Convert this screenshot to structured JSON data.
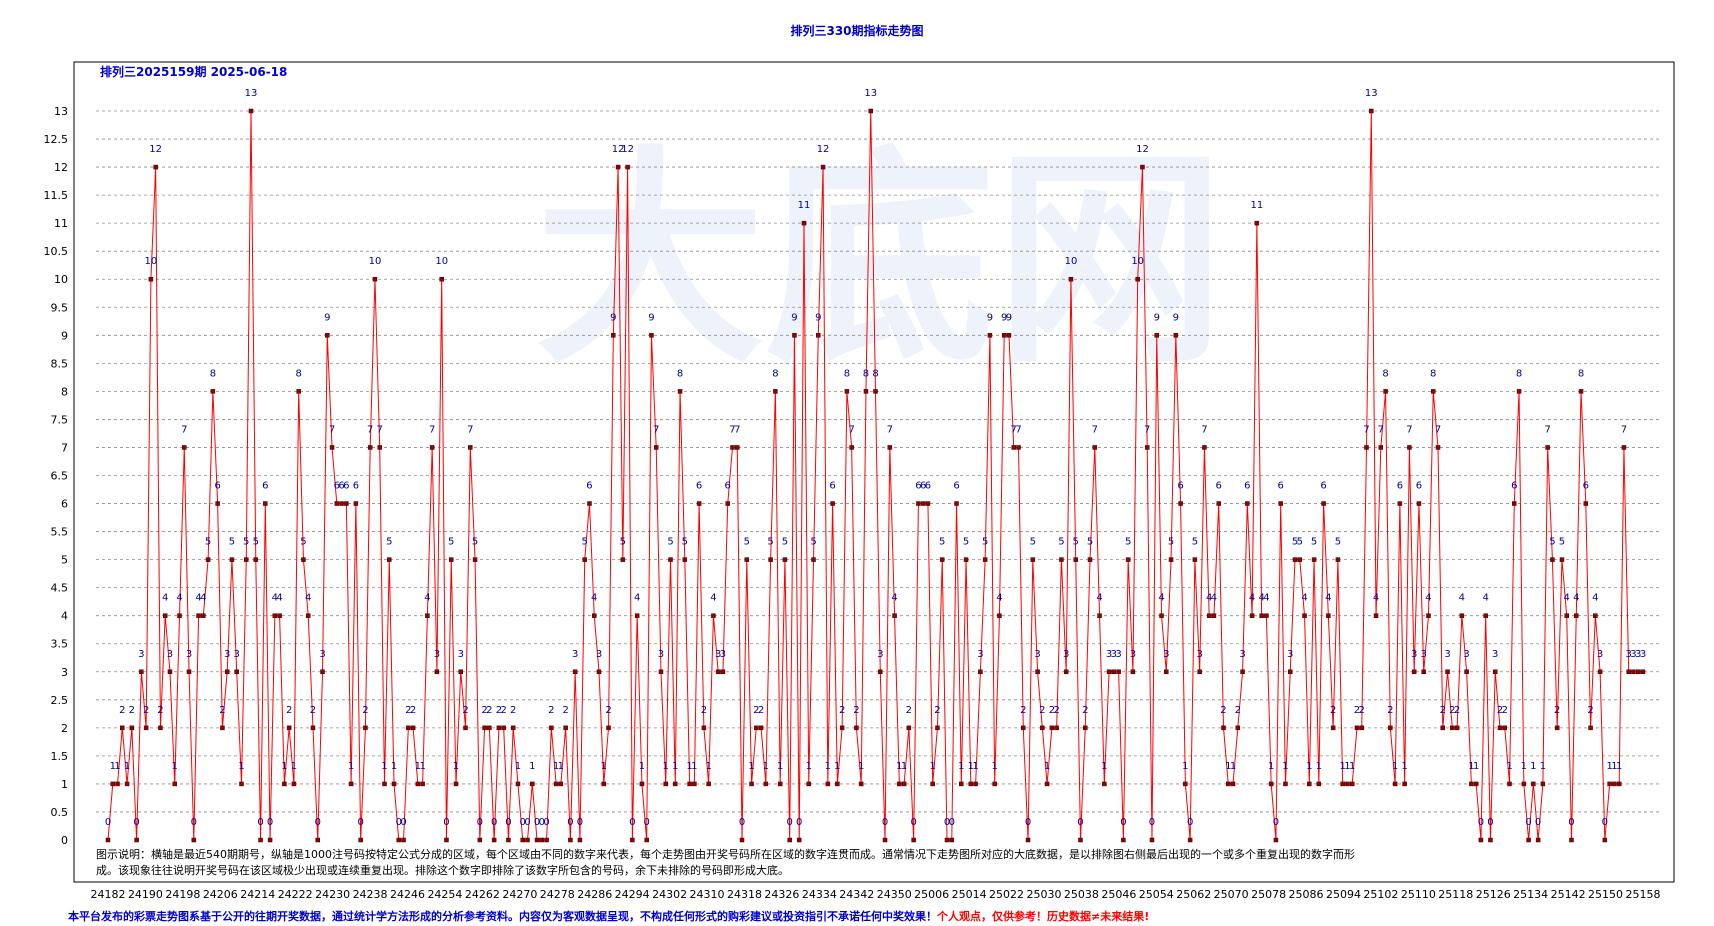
{
  "title": "排列三330期指标走势图",
  "footer": {
    "blue": "本平台发布的彩票走势图系基于公开的往期开奖数据，通过统计学方法形成的分析参考资料。内容仅为客观数据呈现，不构成任何形式的购彩建议或投资指引不承诺任何中奖效果！",
    "red": "个人观点，仅供参考！历史数据≠未来结果!"
  },
  "chart_data": {
    "type": "line",
    "subtitle": "排列三2025159期  2025-06-18",
    "watermark": "大底网",
    "note_lines": [
      "图示说明：横轴是最近540期期号，纵轴是1000注号码按特定公式分成的区域，每个区域由不同的数字来代表，每个走势图由开奖号码所在区域的数字连贯而成。通常情况下走势图所对应的大底数据，是以排除图右侧最后出现的一个或多个重复出现的数字而形",
      "成。该现象往往说明开奖号码在该区域极少出现或连续重复出现。排除这个数字即排除了该数字所包含的号码，余下未排除的号码即形成大底。"
    ],
    "x_tick_labels": [
      "24182",
      "24190",
      "24198",
      "24206",
      "24214",
      "24222",
      "24230",
      "24238",
      "24246",
      "24254",
      "24262",
      "24270",
      "24278",
      "24286",
      "24294",
      "24302",
      "24310",
      "24318",
      "24326",
      "24334",
      "24342",
      "24350",
      "25006",
      "25014",
      "25022",
      "25030",
      "25038",
      "25046",
      "25054",
      "25062",
      "25070",
      "25078",
      "25086",
      "25094",
      "25102",
      "25110",
      "25118",
      "25126",
      "25134",
      "25142",
      "25150",
      "25158"
    ],
    "y_ticks": [
      "0",
      "0.5",
      "1",
      "1.5",
      "2",
      "2.5",
      "3",
      "3.5",
      "4",
      "4.5",
      "5",
      "5.5",
      "6",
      "6.5",
      "7",
      "7.5",
      "8",
      "8.5",
      "9",
      "9.5",
      "10",
      "10.5",
      "11",
      "11.5",
      "12",
      "12.5",
      "13"
    ],
    "ylim": [
      0,
      13
    ],
    "grid": true,
    "colors": {
      "line": "#ff0000",
      "marker": "#990000",
      "label": "#000099",
      "axis_text": "#000000"
    },
    "values": [
      0,
      1,
      1,
      2,
      1,
      2,
      0,
      3,
      2,
      10,
      12,
      2,
      4,
      3,
      1,
      4,
      7,
      3,
      0,
      4,
      4,
      5,
      8,
      6,
      2,
      3,
      5,
      3,
      1,
      5,
      13,
      5,
      0,
      6,
      0,
      4,
      4,
      1,
      2,
      1,
      8,
      5,
      4,
      2,
      0,
      3,
      9,
      7,
      6,
      6,
      6,
      1,
      6,
      0,
      2,
      7,
      10,
      7,
      1,
      5,
      1,
      0,
      0,
      2,
      2,
      1,
      1,
      4,
      7,
      3,
      10,
      0,
      5,
      1,
      3,
      2,
      7,
      5,
      0,
      2,
      2,
      0,
      2,
      2,
      0,
      2,
      1,
      0,
      0,
      1,
      0,
      0,
      0,
      2,
      1,
      1,
      2,
      0,
      3,
      0,
      5,
      6,
      4,
      3,
      1,
      2,
      9,
      12,
      5,
      12,
      0,
      4,
      1,
      0,
      9,
      7,
      3,
      1,
      5,
      1,
      8,
      5,
      1,
      1,
      6,
      2,
      1,
      4,
      3,
      3,
      6,
      7,
      7,
      0,
      5,
      1,
      2,
      2,
      1,
      5,
      8,
      1,
      5,
      0,
      9,
      0,
      11,
      1,
      5,
      9,
      12,
      1,
      6,
      1,
      2,
      8,
      7,
      2,
      1,
      8,
      13,
      8,
      3,
      0,
      7,
      4,
      1,
      1,
      2,
      0,
      6,
      6,
      6,
      1,
      2,
      5,
      0,
      0,
      6,
      1,
      5,
      1,
      1,
      3,
      5,
      9,
      1,
      4,
      9,
      9,
      7,
      7,
      2,
      0,
      5,
      3,
      2,
      1,
      2,
      2,
      5,
      3,
      10,
      5,
      0,
      2,
      5,
      7,
      4,
      1,
      3,
      3,
      3,
      0,
      5,
      3,
      10,
      12,
      7,
      0,
      9,
      4,
      3,
      5,
      9,
      6,
      1,
      0,
      5,
      3,
      7,
      4,
      4,
      6,
      2,
      1,
      1,
      2,
      3,
      6,
      4,
      11,
      4,
      4,
      1,
      0,
      6,
      1,
      3,
      5,
      5,
      4,
      1,
      5,
      1,
      6,
      4,
      2,
      5,
      1,
      1,
      1,
      2,
      2,
      7,
      13,
      4,
      7,
      8,
      2,
      1,
      6,
      1,
      7,
      3,
      6,
      3,
      4,
      8,
      7,
      2,
      3,
      2,
      2,
      4,
      3,
      1,
      1,
      0,
      4,
      0,
      3,
      2,
      2,
      1,
      6,
      8,
      1,
      0,
      1,
      0,
      1,
      7,
      5,
      2,
      5,
      4,
      0,
      4,
      8,
      6,
      2,
      4,
      3,
      0,
      1,
      1,
      1,
      7,
      3,
      3,
      3,
      3
    ]
  }
}
